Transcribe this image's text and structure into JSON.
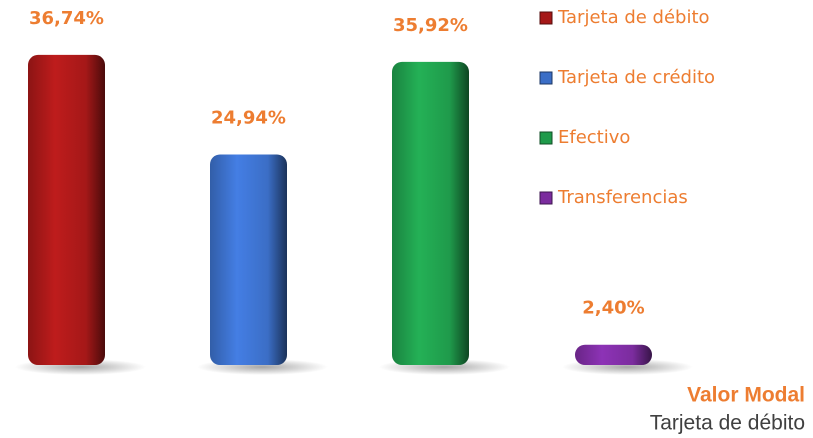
{
  "chart_data": {
    "type": "bar",
    "categories": [
      "Tarjeta de débito",
      "Tarjeta de crédito",
      "Efectivo",
      "Transferencias"
    ],
    "values": [
      36.74,
      24.94,
      35.92,
      2.4
    ],
    "value_labels": [
      "36,74%",
      "24,94%",
      "35,92%",
      "2,40%"
    ],
    "colors": [
      "#a51818",
      "#3b6ec6",
      "#1f9a4b",
      "#7b2c9e"
    ],
    "legend": "right",
    "annotations": [
      "Valor Modal",
      "Tarjeta de débito"
    ]
  }
}
